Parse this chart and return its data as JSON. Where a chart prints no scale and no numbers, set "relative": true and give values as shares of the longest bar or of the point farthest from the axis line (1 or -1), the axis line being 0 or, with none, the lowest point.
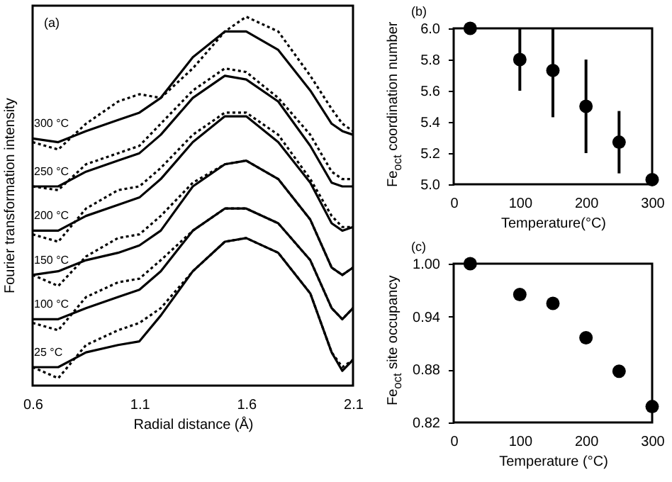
{
  "chart_data": [
    {
      "type": "line",
      "relative": true,
      "xlabel": "Radial distance (Å)",
      "ylabel": "Fourier transformation intensity",
      "annotations": [
        "(a)"
      ],
      "xlim": [
        0.6,
        2.1
      ],
      "xticks": [
        0.6,
        1.1,
        1.6,
        2.1
      ],
      "legend": false,
      "grid": false,
      "x": [
        0.6,
        0.72,
        0.85,
        1.0,
        1.1,
        1.2,
        1.35,
        1.5,
        1.6,
        1.75,
        1.9,
        2.0,
        2.05,
        2.1
      ],
      "series": [
        {
          "name": "25 °C",
          "color": "#000000",
          "line_style": "solid",
          "values": [
            0.05,
            0.05,
            0.09,
            0.11,
            0.12,
            0.19,
            0.31,
            0.39,
            0.4,
            0.36,
            0.25,
            0.09,
            0.04,
            0.07
          ]
        },
        {
          "color": "#000000",
          "line_style": "dotted",
          "values": [
            0.05,
            0.02,
            0.11,
            0.15,
            0.17,
            0.21,
            0.31,
            0.39,
            0.4,
            0.36,
            0.25,
            0.09,
            0.05,
            0.07
          ]
        },
        {
          "name": "100 °C",
          "color": "#000000",
          "line_style": "solid",
          "values": [
            0.18,
            0.18,
            0.21,
            0.24,
            0.26,
            0.31,
            0.42,
            0.48,
            0.48,
            0.44,
            0.34,
            0.21,
            0.18,
            0.21
          ]
        },
        {
          "color": "#000000",
          "line_style": "dotted",
          "values": [
            0.17,
            0.15,
            0.24,
            0.28,
            0.29,
            0.34,
            0.42,
            0.48,
            0.48,
            0.44,
            0.34,
            0.21,
            0.18,
            0.21
          ]
        },
        {
          "name": "150 °C",
          "color": "#000000",
          "line_style": "solid",
          "values": [
            0.3,
            0.31,
            0.34,
            0.36,
            0.38,
            0.42,
            0.54,
            0.6,
            0.61,
            0.56,
            0.45,
            0.32,
            0.3,
            0.32
          ]
        },
        {
          "color": "#000000",
          "line_style": "dotted",
          "values": [
            0.3,
            0.27,
            0.35,
            0.4,
            0.41,
            0.46,
            0.55,
            0.6,
            0.61,
            0.56,
            0.45,
            0.32,
            0.3,
            0.32
          ]
        },
        {
          "name": "200 °C",
          "color": "#000000",
          "line_style": "solid",
          "values": [
            0.42,
            0.42,
            0.46,
            0.49,
            0.51,
            0.56,
            0.66,
            0.73,
            0.73,
            0.66,
            0.55,
            0.44,
            0.42,
            0.43
          ]
        },
        {
          "color": "#000000",
          "line_style": "dotted",
          "values": [
            0.41,
            0.39,
            0.48,
            0.53,
            0.54,
            0.59,
            0.68,
            0.74,
            0.74,
            0.68,
            0.56,
            0.46,
            0.43,
            0.43
          ]
        },
        {
          "name": "250 °C",
          "color": "#000000",
          "line_style": "solid",
          "values": [
            0.54,
            0.54,
            0.58,
            0.61,
            0.63,
            0.68,
            0.78,
            0.84,
            0.83,
            0.77,
            0.65,
            0.55,
            0.54,
            0.54
          ]
        },
        {
          "color": "#000000",
          "line_style": "dotted",
          "values": [
            0.54,
            0.53,
            0.6,
            0.63,
            0.65,
            0.71,
            0.8,
            0.86,
            0.85,
            0.78,
            0.68,
            0.58,
            0.56,
            0.56
          ]
        },
        {
          "name": "300 °C",
          "color": "#000000",
          "line_style": "solid",
          "values": [
            0.67,
            0.66,
            0.69,
            0.72,
            0.74,
            0.78,
            0.89,
            0.96,
            0.96,
            0.91,
            0.8,
            0.71,
            0.69,
            0.68
          ]
        },
        {
          "color": "#000000",
          "line_style": "dotted",
          "values": [
            0.66,
            0.64,
            0.71,
            0.77,
            0.79,
            0.78,
            0.86,
            0.96,
            1.0,
            0.96,
            0.84,
            0.75,
            0.71,
            0.69
          ]
        }
      ]
    },
    {
      "type": "scatter",
      "xlabel": "Temperature(°C)",
      "ylabel": "Fe$_{oct}$ coordination number",
      "annotations": [
        "(b)"
      ],
      "marker": "circle",
      "legend": false,
      "grid": false,
      "xlim": [
        0,
        300
      ],
      "xticks": [
        0,
        100,
        200,
        300
      ],
      "ylim": [
        5.0,
        6.0
      ],
      "yticks": [
        {
          "value": 5.0,
          "label": "5.0"
        },
        {
          "value": 5.2,
          "label": "5.2"
        },
        {
          "value": 5.4,
          "label": "5.4"
        },
        {
          "value": 5.6,
          "label": "5.6"
        },
        {
          "value": 5.8,
          "label": "5.8"
        },
        {
          "value": 6.0,
          "label": "6.0"
        }
      ],
      "x": [
        25,
        100,
        150,
        200,
        250,
        300
      ],
      "series": [
        {
          "color": "#000000",
          "values": [
            6.0,
            5.8,
            5.73,
            5.5,
            5.27,
            5.03
          ],
          "errors": [
            null,
            [
              5.6,
              6.0
            ],
            [
              5.43,
              6.0
            ],
            [
              5.2,
              5.8
            ],
            [
              5.07,
              5.47
            ],
            null
          ]
        }
      ]
    },
    {
      "type": "scatter",
      "xlabel": "Temperature (°C)",
      "ylabel": "Fe$_{oct}$ site occupancy",
      "annotations": [
        "(c)"
      ],
      "marker": "circle",
      "legend": false,
      "grid": false,
      "xlim": [
        0,
        300
      ],
      "xticks": [
        0,
        100,
        200,
        300
      ],
      "ylim": [
        0.82,
        1.0
      ],
      "yticks": [
        {
          "value": 0.82,
          "label": "0.82"
        },
        {
          "value": 0.88,
          "label": "0.88"
        },
        {
          "value": 0.94,
          "label": "0.94"
        },
        {
          "value": 1.0,
          "label": "1.00"
        }
      ],
      "x": [
        25,
        100,
        150,
        200,
        250,
        300
      ],
      "series": [
        {
          "color": "#000000",
          "values": [
            1.0,
            0.965,
            0.955,
            0.916,
            0.878,
            0.838
          ]
        }
      ]
    }
  ]
}
